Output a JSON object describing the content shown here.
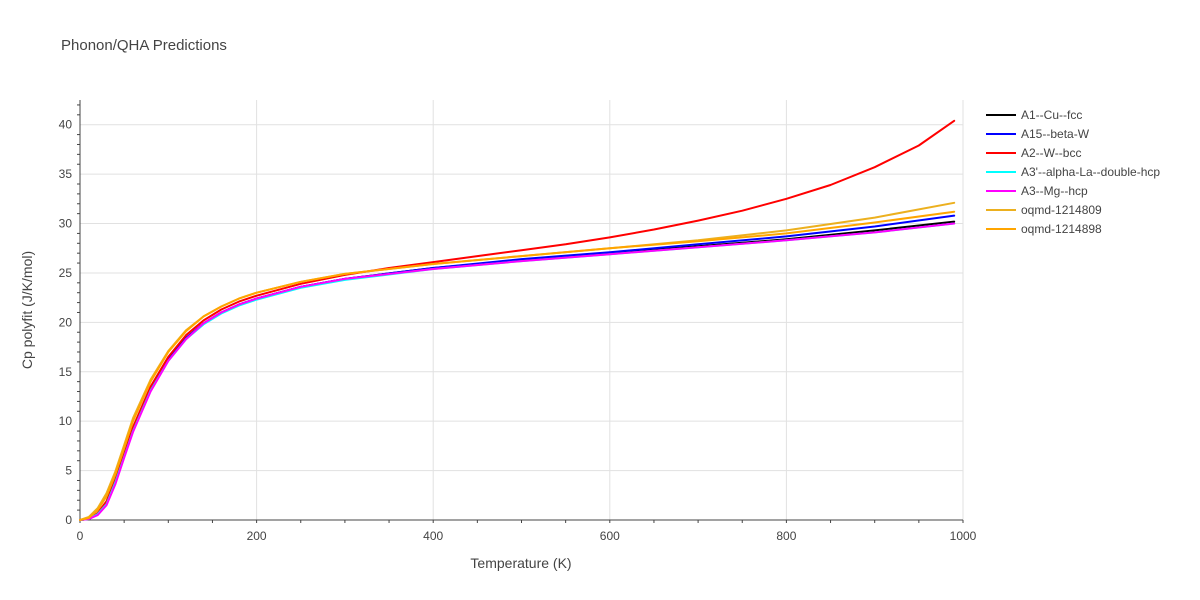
{
  "chart_data": {
    "type": "line",
    "title": "Phonon/QHA Predictions",
    "xlabel": "Temperature (K)",
    "ylabel": "Cp polyfit (J/K/mol)",
    "xlim": [
      0,
      1000
    ],
    "ylim": [
      0,
      42.5
    ],
    "xticks": [
      0,
      200,
      400,
      600,
      800,
      1000
    ],
    "yticks": [
      0,
      5,
      10,
      15,
      20,
      25,
      30,
      35,
      40
    ],
    "grid": true,
    "legend_position": "top-right",
    "series": [
      {
        "name": "A1--Cu--fcc",
        "color": "#000000",
        "x": [
          0,
          10,
          20,
          30,
          40,
          50,
          60,
          80,
          100,
          120,
          140,
          160,
          180,
          200,
          250,
          300,
          400,
          500,
          600,
          700,
          800,
          900,
          990
        ],
        "y": [
          0,
          0.1,
          0.6,
          1.7,
          3.9,
          6.5,
          9.1,
          13.2,
          16.2,
          18.4,
          19.9,
          21.0,
          21.8,
          22.4,
          23.6,
          24.4,
          25.5,
          26.3,
          27.0,
          27.7,
          28.4,
          29.3,
          30.2
        ]
      },
      {
        "name": "A15--beta-W",
        "color": "#0000ff",
        "x": [
          0,
          10,
          20,
          30,
          40,
          50,
          60,
          80,
          100,
          120,
          140,
          160,
          180,
          200,
          250,
          300,
          400,
          500,
          600,
          700,
          800,
          900,
          990
        ],
        "y": [
          0,
          0.1,
          0.6,
          1.7,
          3.9,
          6.5,
          9.1,
          13.2,
          16.2,
          18.4,
          19.9,
          21.0,
          21.8,
          22.4,
          23.6,
          24.4,
          25.5,
          26.4,
          27.1,
          27.9,
          28.7,
          29.7,
          30.8
        ]
      },
      {
        "name": "A2--W--bcc",
        "color": "#ff0000",
        "x": [
          0,
          10,
          20,
          30,
          40,
          50,
          60,
          80,
          100,
          120,
          140,
          160,
          180,
          200,
          250,
          300,
          350,
          400,
          450,
          500,
          550,
          600,
          650,
          700,
          750,
          800,
          850,
          900,
          950,
          990
        ],
        "y": [
          0,
          0.1,
          0.7,
          1.9,
          4.1,
          6.7,
          9.4,
          13.5,
          16.5,
          18.7,
          20.2,
          21.3,
          22.1,
          22.7,
          23.9,
          24.8,
          25.5,
          26.1,
          26.7,
          27.3,
          27.9,
          28.6,
          29.4,
          30.3,
          31.3,
          32.5,
          33.9,
          35.7,
          37.9,
          40.4
        ]
      },
      {
        "name": "A3'--alpha-La--double-hcp",
        "color": "#00ffff",
        "x": [
          0,
          10,
          20,
          30,
          40,
          50,
          60,
          80,
          100,
          120,
          140,
          160,
          180,
          200,
          250,
          300,
          400,
          500,
          600,
          700,
          800,
          900,
          990
        ],
        "y": [
          0,
          0.1,
          0.6,
          1.6,
          3.8,
          6.4,
          9.0,
          13.1,
          16.1,
          18.3,
          19.8,
          20.9,
          21.7,
          22.3,
          23.5,
          24.3,
          25.4,
          26.2,
          26.9,
          27.6,
          28.3,
          29.1,
          30.0
        ]
      },
      {
        "name": "A3--Mg--hcp",
        "color": "#ff00ff",
        "x": [
          0,
          10,
          20,
          30,
          40,
          50,
          60,
          80,
          100,
          120,
          140,
          160,
          180,
          200,
          250,
          300,
          400,
          500,
          600,
          700,
          800,
          900,
          990
        ],
        "y": [
          0,
          0.1,
          0.5,
          1.5,
          3.6,
          6.3,
          8.9,
          13.0,
          16.1,
          18.3,
          19.9,
          21.0,
          21.8,
          22.4,
          23.6,
          24.4,
          25.4,
          26.2,
          26.9,
          27.6,
          28.3,
          29.1,
          30.0
        ]
      },
      {
        "name": "oqmd-1214809",
        "color": "#ecb01f",
        "x": [
          0,
          10,
          20,
          30,
          40,
          50,
          60,
          80,
          100,
          120,
          140,
          160,
          180,
          200,
          250,
          300,
          400,
          500,
          600,
          700,
          800,
          900,
          990
        ],
        "y": [
          0,
          0.3,
          1.2,
          2.7,
          4.9,
          7.6,
          10.3,
          14.2,
          17.1,
          19.2,
          20.6,
          21.6,
          22.4,
          23.0,
          24.1,
          24.9,
          25.9,
          26.7,
          27.5,
          28.3,
          29.3,
          30.6,
          32.1
        ]
      },
      {
        "name": "oqmd-1214898",
        "color": "#ffa500",
        "x": [
          0,
          10,
          20,
          30,
          40,
          50,
          60,
          80,
          100,
          120,
          140,
          160,
          180,
          200,
          250,
          300,
          400,
          500,
          600,
          700,
          800,
          900,
          990
        ],
        "y": [
          0,
          0.2,
          1.0,
          2.4,
          4.6,
          7.3,
          10.0,
          14.0,
          17.0,
          19.1,
          20.6,
          21.6,
          22.4,
          23.0,
          24.1,
          24.9,
          25.9,
          26.7,
          27.5,
          28.2,
          29.0,
          30.1,
          31.2
        ]
      }
    ]
  }
}
